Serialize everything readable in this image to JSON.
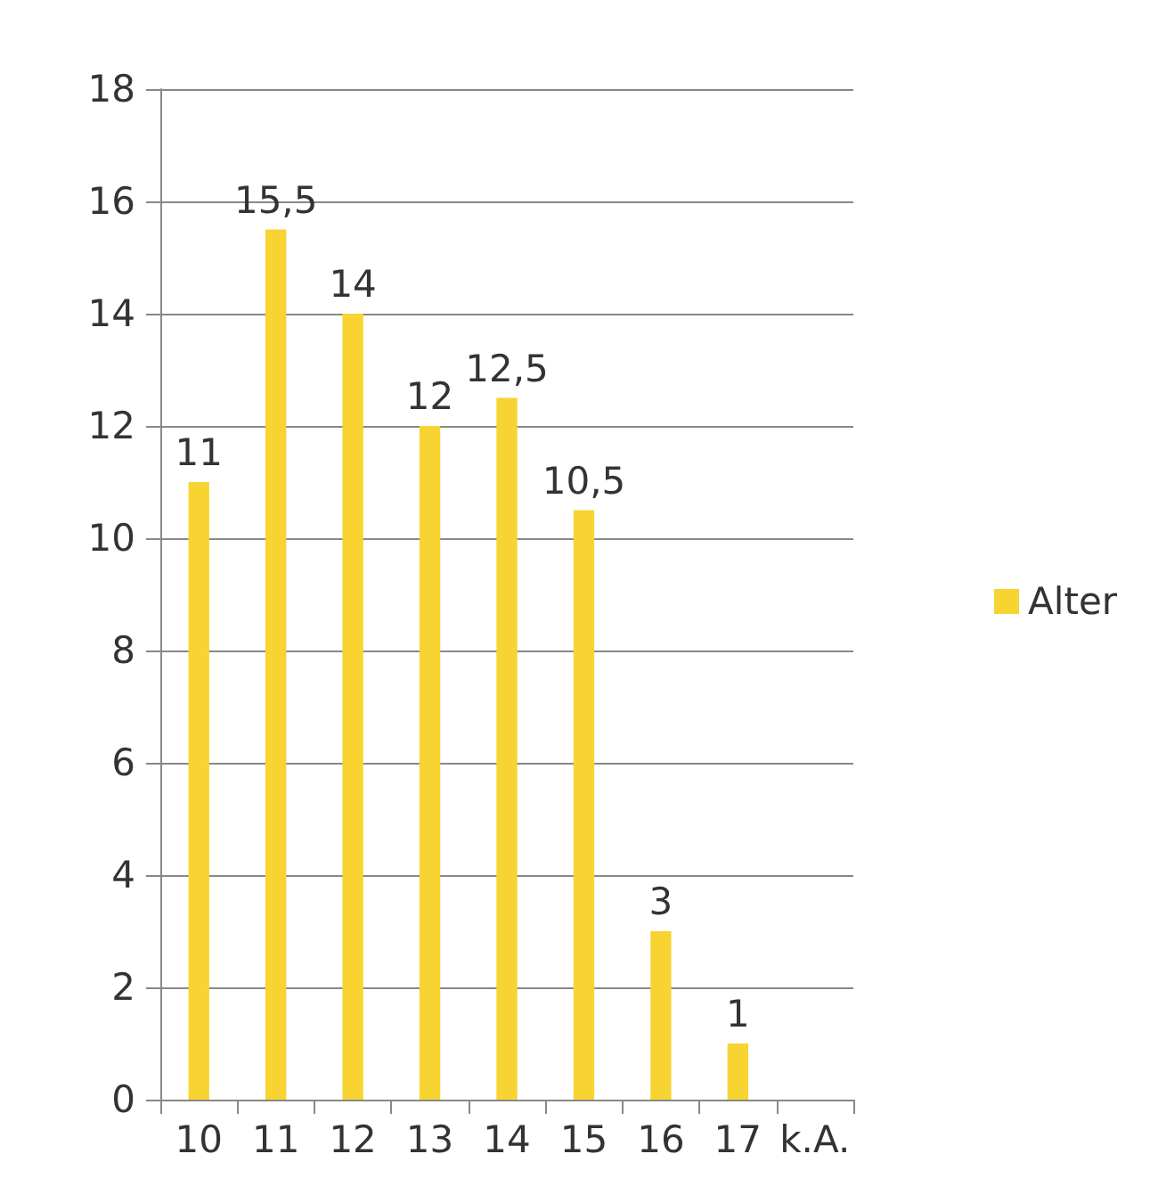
{
  "chart_data": {
    "type": "bar",
    "categories": [
      "10",
      "11",
      "12",
      "13",
      "14",
      "15",
      "16",
      "17",
      "k.A."
    ],
    "series": [
      {
        "name": "Alter",
        "color": "#f7d431",
        "values": [
          11,
          15.5,
          14,
          12,
          12.5,
          10.5,
          3,
          1,
          null
        ],
        "value_labels": [
          "11",
          "15,5",
          "14",
          "12",
          "12,5",
          "10,5",
          "3",
          "1",
          null
        ]
      }
    ],
    "ylim": [
      0,
      18
    ],
    "yticks": [
      0,
      2,
      4,
      6,
      8,
      10,
      12,
      14,
      16,
      18
    ],
    "grid": "y",
    "legend": "right"
  }
}
